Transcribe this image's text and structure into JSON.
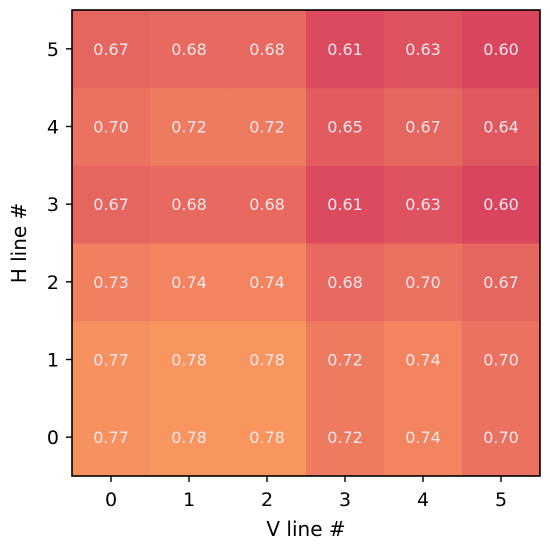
{
  "chart_data": {
    "type": "heatmap",
    "title": "",
    "xlabel": "V line #",
    "ylabel": "H line #",
    "x_ticks": [
      "0",
      "1",
      "2",
      "3",
      "4",
      "5"
    ],
    "y_ticks": [
      "0",
      "1",
      "2",
      "3",
      "4",
      "5"
    ],
    "rows": [
      {
        "y": 0,
        "values": [
          0.77,
          0.78,
          0.78,
          0.72,
          0.74,
          0.7
        ],
        "labels": [
          "0.77",
          "0.78",
          "0.78",
          "0.72",
          "0.74",
          "0.70"
        ]
      },
      {
        "y": 1,
        "values": [
          0.77,
          0.78,
          0.78,
          0.72,
          0.74,
          0.7
        ],
        "labels": [
          "0.77",
          "0.78",
          "0.78",
          "0.72",
          "0.74",
          "0.70"
        ]
      },
      {
        "y": 2,
        "values": [
          0.73,
          0.74,
          0.74,
          0.68,
          0.7,
          0.67
        ],
        "labels": [
          "0.73",
          "0.74",
          "0.74",
          "0.68",
          "0.70",
          "0.67"
        ]
      },
      {
        "y": 3,
        "values": [
          0.67,
          0.68,
          0.68,
          0.61,
          0.63,
          0.6
        ],
        "labels": [
          "0.67",
          "0.68",
          "0.68",
          "0.61",
          "0.63",
          "0.60"
        ]
      },
      {
        "y": 4,
        "values": [
          0.7,
          0.72,
          0.72,
          0.65,
          0.67,
          0.64
        ],
        "labels": [
          "0.70",
          "0.72",
          "0.72",
          "0.65",
          "0.67",
          "0.64"
        ]
      },
      {
        "y": 5,
        "values": [
          0.67,
          0.68,
          0.68,
          0.61,
          0.63,
          0.6
        ],
        "labels": [
          "0.67",
          "0.68",
          "0.68",
          "0.61",
          "0.63",
          "0.60"
        ]
      }
    ],
    "color_range": [
      0.6,
      0.78
    ],
    "colors": {
      "low": "#d9455f",
      "high": "#f99660",
      "cell_text": "#f3e6ea",
      "frame": "#000000"
    },
    "grid": false,
    "legend": "none"
  }
}
